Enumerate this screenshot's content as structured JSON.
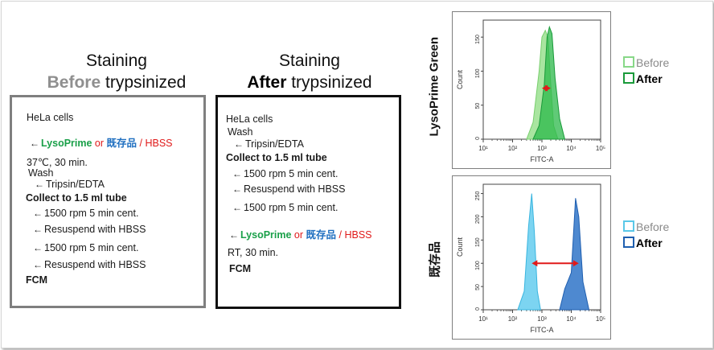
{
  "titles": {
    "left": {
      "line1": "Staining",
      "emph": "Before",
      "rest": " trypsinized"
    },
    "right": {
      "line1": "Staining",
      "emph": "After",
      "rest": " trypsinized"
    }
  },
  "left_protocol": {
    "hela": "HeLa cells",
    "reagent": {
      "lysoprime": "LysoPrime",
      "or": " or ",
      "kizon": "既存品",
      "hbss": " / HBSS"
    },
    "incubation": "37℃, 30 min.",
    "wash": "Wash",
    "tripsin": "Tripsin/EDTA",
    "collect": "Collect to 1.5 ml tube",
    "cent1": "1500 rpm 5 min cent.",
    "resusp1": "Resuspend with HBSS",
    "cent2": "1500 rpm 5 min cent.",
    "resusp2": "Resuspend with HBSS",
    "fcm": "FCM"
  },
  "right_protocol": {
    "hela": "HeLa cells",
    "wash": "Wash",
    "tripsin": "Tripsin/EDTA",
    "collect": "Collect to 1.5 ml tube",
    "cent1": "1500 rpm 5 min cent.",
    "resusp1": "Resuspend with HBSS",
    "cent2": "1500 rpm 5 min cent.",
    "reagent": {
      "lysoprime": "LysoPrime",
      "or": " or ",
      "kizon": "既存品",
      "hbss": " / HBSS"
    },
    "incubation": "RT, 30 min.",
    "fcm": "FCM"
  },
  "arrow_glyph": "←",
  "charts": {
    "top": {
      "row_label": "LysoPrime Green",
      "xlabel": "FITC-A",
      "ylabel": "Count",
      "xticks": [
        "10¹",
        "10²",
        "10³",
        "10⁴",
        "10⁵"
      ],
      "yticks": [
        "0",
        "50",
        "100",
        "150"
      ],
      "legend": [
        {
          "label": "Before",
          "color": "#88d888"
        },
        {
          "label": "After",
          "color": "#1a9a3a"
        }
      ]
    },
    "bottom": {
      "row_label": "既存品",
      "xlabel": "FITC-A",
      "ylabel": "Count",
      "xticks": [
        "10¹",
        "10²",
        "10³",
        "10⁴",
        "10⁵"
      ],
      "yticks": [
        "0",
        "50",
        "100",
        "150",
        "200",
        "250"
      ],
      "legend": [
        {
          "label": "Before",
          "color": "#5ac8e8"
        },
        {
          "label": "After",
          "color": "#1f5fb0"
        }
      ]
    }
  },
  "chart_data": [
    {
      "type": "area",
      "xscale": "log",
      "xlim": [
        10,
        100000
      ],
      "ylim": [
        0,
        175
      ],
      "series": [
        {
          "name": "Before",
          "x": [
            300,
            500,
            800,
            1000,
            1300,
            1600,
            2000,
            2500,
            3500
          ],
          "y": [
            0,
            25,
            100,
            150,
            160,
            150,
            80,
            20,
            0
          ]
        },
        {
          "name": "After",
          "x": [
            500,
            800,
            1200,
            1500,
            1800,
            2200,
            2800,
            4000,
            6000
          ],
          "y": [
            0,
            20,
            80,
            150,
            165,
            155,
            90,
            30,
            0
          ]
        }
      ]
    },
    {
      "type": "area",
      "xscale": "log",
      "xlim": [
        10,
        100000
      ],
      "ylim": [
        0,
        270
      ],
      "series": [
        {
          "name": "Before",
          "x": [
            150,
            250,
            350,
            450,
            550,
            700,
            900
          ],
          "y": [
            0,
            40,
            180,
            250,
            170,
            40,
            0
          ]
        },
        {
          "name": "After",
          "x": [
            4000,
            6000,
            10000,
            14000,
            18000,
            25000,
            40000
          ],
          "y": [
            0,
            45,
            80,
            240,
            200,
            60,
            0
          ]
        }
      ]
    }
  ]
}
